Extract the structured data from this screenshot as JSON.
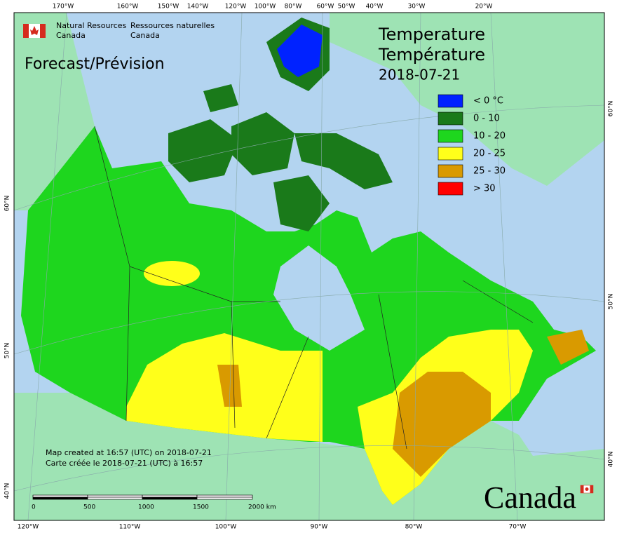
{
  "agency": {
    "en_line1": "Natural Resources",
    "en_line2": "Canada",
    "fr_line1": "Ressources naturelles",
    "fr_line2": "Canada"
  },
  "product": "Forecast/Prévision",
  "title": {
    "en": "Temperature",
    "fr": "Température",
    "date": "2018-07-21"
  },
  "legend": [
    {
      "label": "< 0 °C",
      "color": "#0022ff"
    },
    {
      "label": "0 - 10",
      "color": "#1a7a1a"
    },
    {
      "label": "10 - 20",
      "color": "#1ed61e"
    },
    {
      "label": "20 - 25",
      "color": "#ffff1a"
    },
    {
      "label": "25 - 30",
      "color": "#d99a00"
    },
    {
      "label": "> 30",
      "color": "#ff0000"
    }
  ],
  "credits": [
    "Map created at 16:57 (UTC) on 2018-07-21",
    "Carte créée le 2018-07-21 (UTC) à 16:57"
  ],
  "scale_bar": {
    "labels": [
      "0",
      "500",
      "1000",
      "1500",
      "2000 km"
    ]
  },
  "graticule": {
    "top": [
      "170°W",
      "160°W",
      "150°W",
      "140°W",
      "120°W",
      "100°W",
      "80°W",
      "60°W",
      "50°W",
      "40°W",
      "30°W",
      "20°W"
    ],
    "bottom": [
      "120°W",
      "110°W",
      "100°W",
      "90°W",
      "80°W",
      "70°W"
    ],
    "left": [
      "60°N",
      "50°N",
      "40°N"
    ],
    "right": [
      "60°N",
      "50°N",
      "40°N"
    ]
  },
  "wordmark": "Canada"
}
